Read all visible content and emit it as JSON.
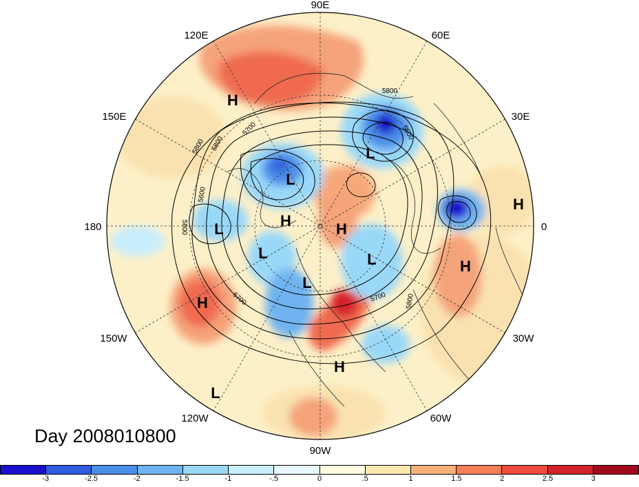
{
  "title": "Day 2008010800",
  "longitude_labels": [
    {
      "text": "90E",
      "name": "lon-label-90e"
    },
    {
      "text": "60E",
      "name": "lon-label-60e"
    },
    {
      "text": "30E",
      "name": "lon-label-30e"
    },
    {
      "text": "0",
      "name": "lon-label-0"
    },
    {
      "text": "30W",
      "name": "lon-label-30w"
    },
    {
      "text": "60W",
      "name": "lon-label-60w"
    },
    {
      "text": "90W",
      "name": "lon-label-90w"
    },
    {
      "text": "120W",
      "name": "lon-label-120w"
    },
    {
      "text": "150W",
      "name": "lon-label-150w"
    },
    {
      "text": "180",
      "name": "lon-label-180"
    },
    {
      "text": "150E",
      "name": "lon-label-150e"
    },
    {
      "text": "120E",
      "name": "lon-label-120e"
    }
  ],
  "pressure_centers": [
    {
      "type": "H"
    },
    {
      "type": "H"
    },
    {
      "type": "H"
    },
    {
      "type": "H"
    },
    {
      "type": "H"
    },
    {
      "type": "H"
    },
    {
      "type": "H"
    },
    {
      "type": "L"
    },
    {
      "type": "L"
    },
    {
      "type": "L"
    },
    {
      "type": "L"
    },
    {
      "type": "L"
    },
    {
      "type": "L"
    },
    {
      "type": "L"
    }
  ],
  "contour_labels": [
    "5800",
    "5700",
    "5800",
    "5600",
    "5800",
    "5600",
    "5700",
    "5700",
    "5800",
    "5800"
  ],
  "colorbar": {
    "colors": [
      "#1b10cc",
      "#2f5be0",
      "#4b8ee8",
      "#6fb3f0",
      "#9ad8f8",
      "#c8eefc",
      "#e8f8fc",
      "#fffbe0",
      "#fce7b0",
      "#f8b07a",
      "#f47e58",
      "#ee4a3e",
      "#d4232a",
      "#a10a1c"
    ],
    "labels": [
      "-3",
      "-2.5",
      "-2",
      "-1.5",
      "-1",
      "-.5",
      "0",
      ".5",
      "1",
      "1.5",
      "2",
      "2.5",
      "3"
    ]
  }
}
